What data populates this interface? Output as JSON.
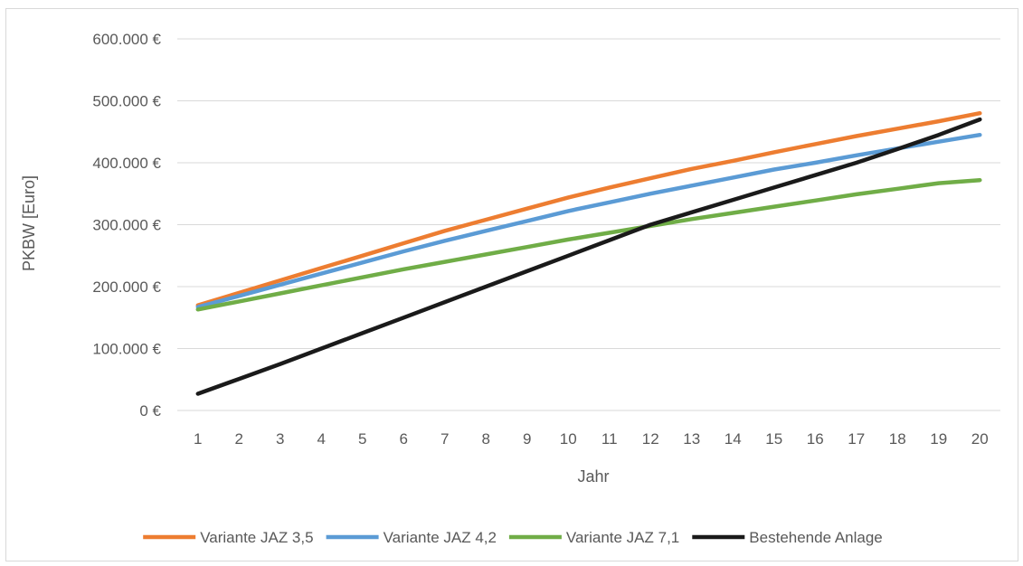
{
  "chart_data": {
    "type": "line",
    "title": "",
    "xlabel": "Jahr",
    "ylabel": "PKBW [Euro]",
    "categories": [
      "1",
      "2",
      "3",
      "4",
      "5",
      "6",
      "7",
      "8",
      "9",
      "10",
      "11",
      "12",
      "13",
      "14",
      "15",
      "16",
      "17",
      "18",
      "19",
      "20"
    ],
    "y_ticks": [
      "0 €",
      "100.000 €",
      "200.000 €",
      "300.000 €",
      "400.000 €",
      "500.000 €",
      "600.000 €"
    ],
    "ylim": [
      0,
      600000
    ],
    "grid": "horizontal",
    "legend_position": "bottom",
    "series": [
      {
        "name": "Variante JAZ 3,5",
        "color": "#ed7d31",
        "values": [
          170000,
          190000,
          210000,
          230000,
          250000,
          270000,
          290000,
          308000,
          326000,
          344000,
          360000,
          375000,
          390000,
          403000,
          417000,
          430000,
          443000,
          455000,
          467000,
          480000
        ]
      },
      {
        "name": "Variante JAZ 4,2",
        "color": "#5b9bd5",
        "values": [
          167000,
          185000,
          203000,
          221000,
          239000,
          257000,
          274000,
          290000,
          306000,
          322000,
          336000,
          350000,
          363000,
          376000,
          389000,
          400000,
          412000,
          423000,
          434000,
          445000
        ]
      },
      {
        "name": "Variante JAZ 7,1",
        "color": "#70ad47",
        "values": [
          163000,
          176000,
          189000,
          202000,
          215000,
          228000,
          240000,
          252000,
          264000,
          276000,
          287000,
          298000,
          309000,
          319000,
          329000,
          339000,
          349000,
          358000,
          367000,
          372000
        ]
      },
      {
        "name": "Bestehende Anlage",
        "color": "#1a1a1a",
        "values": [
          27000,
          51000,
          75000,
          100000,
          125000,
          150000,
          175000,
          200000,
          225000,
          250000,
          275000,
          300000,
          320000,
          340000,
          360000,
          380000,
          400000,
          422000,
          445000,
          470000
        ]
      }
    ]
  }
}
